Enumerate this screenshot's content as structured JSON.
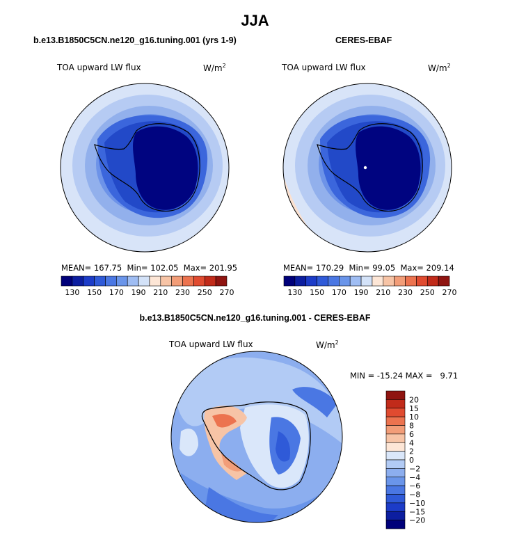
{
  "page": {
    "title": "JJA"
  },
  "colors": {
    "abs_scale": [
      "#00007a",
      "#0c1ea0",
      "#1c3cc8",
      "#2f5ad8",
      "#4a77e3",
      "#6a95ea",
      "#9fbdf3",
      "#d3e2f8",
      "#fde6d6",
      "#f7c4a6",
      "#f29d78",
      "#ec734f",
      "#e04b30",
      "#c12b1a",
      "#8f1410"
    ],
    "diff_scale": [
      "#00007a",
      "#0c1ea0",
      "#1c3cc8",
      "#2f5ad8",
      "#4a77e3",
      "#6a95ea",
      "#8caeef",
      "#b2cbf5",
      "#dae7fa",
      "#fde6d6",
      "#f7c4a6",
      "#f29d78",
      "#ec734f",
      "#e04b30",
      "#c12b1a",
      "#8f1410"
    ]
  },
  "chart_data": [
    {
      "type": "heatmap",
      "panel_title": "b.e13.B1850C5CN.ne120_g16.tuning.001 (yrs 1-9)",
      "left_label": "TOA upward LW flux",
      "right_label": "W/m",
      "right_label_sup": "2",
      "stats": {
        "mean_label": "MEAN=",
        "mean": "167.75",
        "min_label": "Min=",
        "min": "102.05",
        "max_label": "Max=",
        "max": "201.95"
      },
      "colorbar": {
        "levels": [
          130,
          140,
          150,
          160,
          170,
          180,
          190,
          200,
          210,
          220,
          230,
          240,
          250,
          260
        ],
        "tick_labels": [
          "130",
          "150",
          "170",
          "190",
          "210",
          "230",
          "250",
          "270"
        ]
      }
    },
    {
      "type": "heatmap",
      "panel_title": "CERES-EBAF",
      "left_label": "TOA upward LW flux",
      "right_label": "W/m",
      "right_label_sup": "2",
      "stats": {
        "mean_label": "MEAN=",
        "mean": "170.29",
        "min_label": "Min=",
        "min": "99.05",
        "max_label": "Max=",
        "max": "209.14"
      },
      "colorbar": {
        "levels": [
          130,
          140,
          150,
          160,
          170,
          180,
          190,
          200,
          210,
          220,
          230,
          240,
          250,
          260
        ],
        "tick_labels": [
          "130",
          "150",
          "170",
          "190",
          "210",
          "230",
          "250",
          "270"
        ]
      }
    },
    {
      "type": "heatmap",
      "panel_title": "b.e13.B1850C5CN.ne120_g16.tuning.001 - CERES-EBAF",
      "left_label": "TOA upward LW flux",
      "right_label": "W/m",
      "right_label_sup": "2",
      "minmax": {
        "min_label": "MIN =",
        "min": "-15.24",
        "max_label": "MAX =",
        "max": "9.71"
      },
      "colorbar": {
        "levels": [
          -20,
          -15,
          -10,
          -8,
          -6,
          -4,
          -2,
          0,
          2,
          4,
          6,
          8,
          10,
          15,
          20
        ],
        "tick_labels": [
          "20",
          "15",
          "10",
          "8",
          "6",
          "4",
          "2",
          "0",
          "−2",
          "−4",
          "−6",
          "−8",
          "−10",
          "−15",
          "−20"
        ]
      }
    }
  ]
}
